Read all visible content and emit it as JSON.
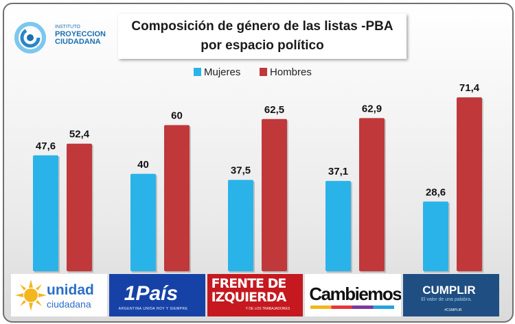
{
  "header": {
    "title_line1": "Composición de género de las listas -PBA",
    "title_line2": "por espacio político",
    "org_line1": "INSTITUTO",
    "org_line2": "PROYECCION",
    "org_line3": "CIUDADANA"
  },
  "chart_data": {
    "type": "bar",
    "title": "Composición de género de las listas -PBA por espacio político",
    "categories": [
      "Unidad Ciudadana",
      "1País",
      "Frente de Izquierda",
      "Cambiemos",
      "Cumplir"
    ],
    "series": [
      {
        "name": "Mujeres",
        "color": "#2ab3e8",
        "values": [
          47.6,
          40,
          37.5,
          37.1,
          28.6
        ]
      },
      {
        "name": "Hombres",
        "color": "#c0383a",
        "values": [
          52.4,
          60,
          62.5,
          62.9,
          71.4
        ]
      }
    ],
    "value_labels": {
      "Mujeres": [
        "47,6",
        "40",
        "37,5",
        "37,1",
        "28,6"
      ],
      "Hombres": [
        "52,4",
        "60",
        "62,5",
        "62,9",
        "71,4"
      ]
    },
    "ylim": [
      0,
      100
    ],
    "grid": false,
    "legend": "top-center",
    "xlabel": "",
    "ylabel": ""
  },
  "logos": {
    "unidad": {
      "line1": "unidad",
      "line2": "ciudadana"
    },
    "pais": {
      "name": "1País",
      "tagline": "ARGENTINA UNIDA HOY Y SIEMPRE"
    },
    "fit": {
      "line1": "FRENTE DE",
      "line2": "IZQUIERDA",
      "tagline": "Y DE LOS TRABAJADORES"
    },
    "cambiemos": {
      "name": "Cambiemos"
    },
    "cumplir": {
      "name": "CUMPLIR",
      "tagline": "El valor de una palabra.",
      "small": "#CUMPLIR"
    }
  }
}
